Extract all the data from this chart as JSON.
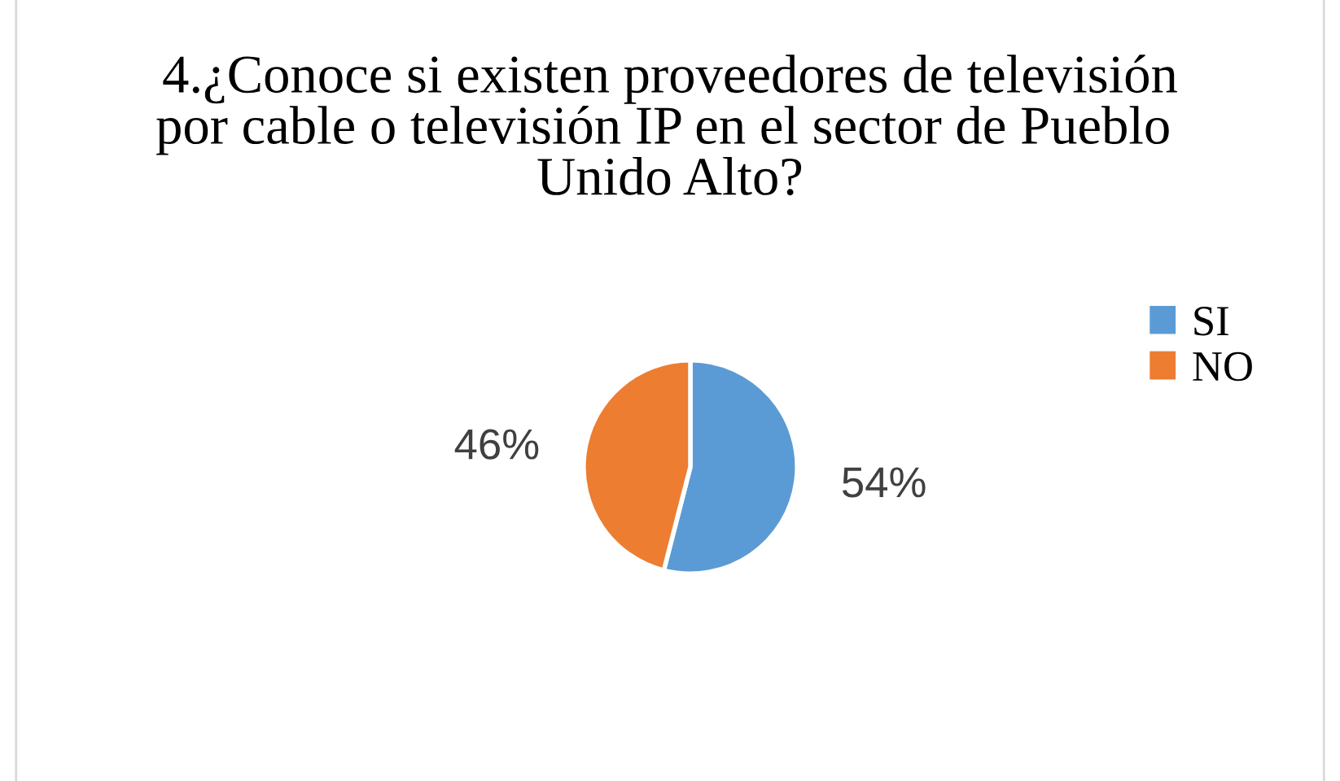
{
  "chart_data": {
    "type": "pie",
    "title": "4.¿Conoce si existen proveedores de televisión por cable o televisión IP en el sector de Pueblo  Unido Alto?",
    "categories": [
      "SI",
      "NO"
    ],
    "values": [
      54,
      46
    ],
    "colors": [
      "#5b9bd5",
      "#ed7d31"
    ],
    "value_labels": [
      "54%",
      "46%"
    ],
    "legend": "right"
  }
}
